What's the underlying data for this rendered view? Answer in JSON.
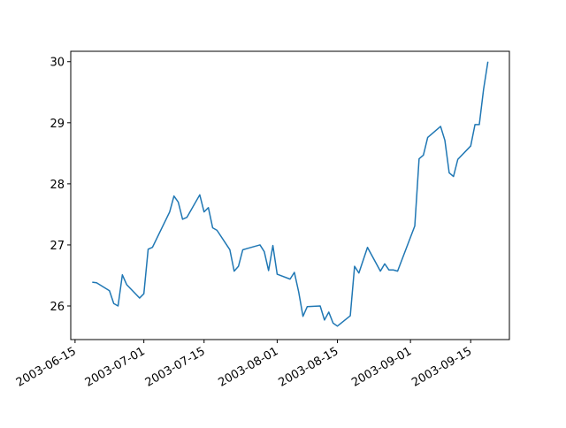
{
  "chart_data": {
    "type": "line",
    "x": [
      "2003-06-19",
      "2003-06-20",
      "2003-06-23",
      "2003-06-24",
      "2003-06-25",
      "2003-06-26",
      "2003-06-27",
      "2003-06-30",
      "2003-07-01",
      "2003-07-02",
      "2003-07-03",
      "2003-07-07",
      "2003-07-08",
      "2003-07-09",
      "2003-07-10",
      "2003-07-11",
      "2003-07-14",
      "2003-07-15",
      "2003-07-16",
      "2003-07-17",
      "2003-07-18",
      "2003-07-21",
      "2003-07-22",
      "2003-07-23",
      "2003-07-24",
      "2003-07-25",
      "2003-07-28",
      "2003-07-29",
      "2003-07-30",
      "2003-07-31",
      "2003-08-01",
      "2003-08-04",
      "2003-08-05",
      "2003-08-06",
      "2003-08-07",
      "2003-08-08",
      "2003-08-11",
      "2003-08-12",
      "2003-08-13",
      "2003-08-14",
      "2003-08-15",
      "2003-08-18",
      "2003-08-19",
      "2003-08-20",
      "2003-08-22",
      "2003-08-25",
      "2003-08-26",
      "2003-08-27",
      "2003-08-28",
      "2003-08-29",
      "2003-09-02",
      "2003-09-03",
      "2003-09-04",
      "2003-09-05",
      "2003-09-08",
      "2003-09-09",
      "2003-09-10",
      "2003-09-11",
      "2003-09-12",
      "2003-09-15",
      "2003-09-16",
      "2003-09-17",
      "2003-09-18",
      "2003-09-19"
    ],
    "series": [
      {
        "color": "#1f77b4",
        "values": [
          26.39,
          26.38,
          26.25,
          26.04,
          26.0,
          26.51,
          26.35,
          26.13,
          26.2,
          26.93,
          26.96,
          27.54,
          27.8,
          27.7,
          27.42,
          27.45,
          27.82,
          27.54,
          27.61,
          27.28,
          27.24,
          26.92,
          26.57,
          26.65,
          26.92,
          26.94,
          27.0,
          26.89,
          26.58,
          26.99,
          26.52,
          26.44,
          26.55,
          26.23,
          25.83,
          25.99,
          26.0,
          25.77,
          25.9,
          25.72,
          25.67,
          25.84,
          26.65,
          26.54,
          26.96,
          26.57,
          26.69,
          26.59,
          26.59,
          26.57,
          27.31,
          28.41,
          28.47,
          28.76,
          28.94,
          28.71,
          28.18,
          28.12,
          28.4,
          28.62,
          28.97,
          28.97,
          29.55,
          30.0
        ]
      }
    ],
    "xlim": [
      "2003-06-14",
      "2003-09-24"
    ],
    "xticks": [
      "2003-06-15",
      "2003-07-01",
      "2003-07-15",
      "2003-08-01",
      "2003-08-15",
      "2003-09-01",
      "2003-09-15"
    ],
    "ylim": [
      25.45,
      30.17
    ],
    "yticks": [
      26,
      27,
      28,
      29,
      30
    ]
  }
}
